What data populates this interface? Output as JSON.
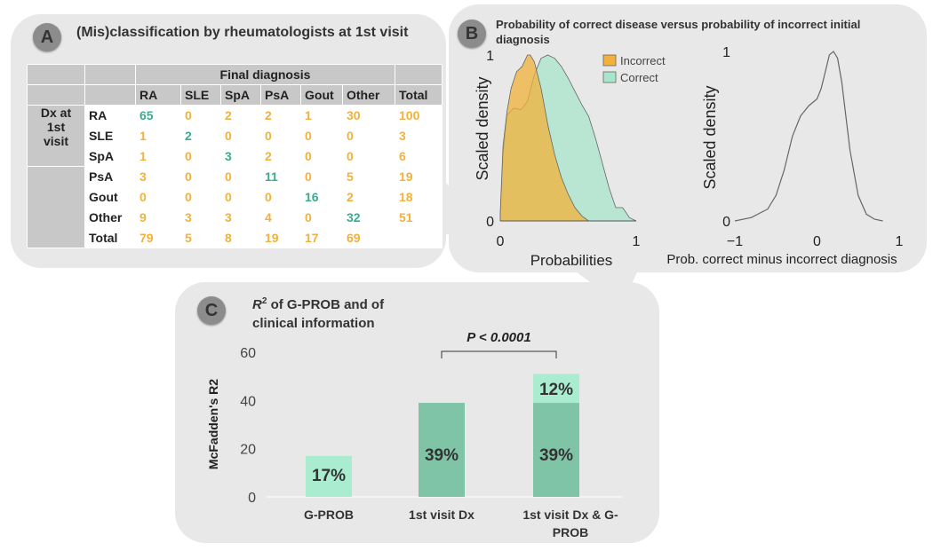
{
  "panelA": {
    "badge": "A",
    "title": "(Mis)classification by rheumatologists at 1st visit",
    "final_header": "Final diagnosis",
    "row_header": [
      "Dx at",
      "1st",
      "visit"
    ],
    "columns": [
      "RA",
      "SLE",
      "SpA",
      "PsA",
      "Gout",
      "Other",
      "Total"
    ],
    "rows": [
      {
        "label": "RA",
        "cells": [
          "65",
          "0",
          "2",
          "2",
          "1",
          "30",
          "100"
        ]
      },
      {
        "label": "SLE",
        "cells": [
          "1",
          "2",
          "0",
          "0",
          "0",
          "0",
          "3"
        ]
      },
      {
        "label": "SpA",
        "cells": [
          "1",
          "0",
          "3",
          "2",
          "0",
          "0",
          "6"
        ]
      },
      {
        "label": "PsA",
        "cells": [
          "3",
          "0",
          "0",
          "11",
          "0",
          "5",
          "19"
        ]
      },
      {
        "label": "Gout",
        "cells": [
          "0",
          "0",
          "0",
          "0",
          "16",
          "2",
          "18"
        ]
      },
      {
        "label": "Other",
        "cells": [
          "9",
          "3",
          "3",
          "4",
          "0",
          "32",
          "51"
        ]
      },
      {
        "label": "Total",
        "cells": [
          "79",
          "5",
          "8",
          "19",
          "17",
          "69",
          ""
        ]
      }
    ]
  },
  "panelB": {
    "badge": "B",
    "title_line1": "Probability of correct disease versus probability of incorrect initial",
    "title_line2": "diagnosis"
  },
  "panelC": {
    "badge": "C",
    "title_r2": "R",
    "title_sup": "2",
    "title_rest": " of G-PROB and of",
    "title_line2": "clinical information"
  },
  "colors": {
    "incorrect": "#f2b13a",
    "correct": "#a9e5cc",
    "bar_dark": "#7fc4a6",
    "bar_light": "#a9ecd0",
    "green_text": "#3aab8f"
  },
  "chart_data": [
    {
      "type": "area",
      "title": "Probability of correct disease versus probability of incorrect initial diagnosis",
      "xlabel": "Probabilities",
      "ylabel": "Scaled density",
      "xlim": [
        0,
        1
      ],
      "ylim": [
        0,
        1
      ],
      "xticks": [
        "0",
        "1"
      ],
      "yticks": [
        "0",
        "1"
      ],
      "legend": {
        "position": "top-right",
        "entries": [
          "Incorrect",
          "Correct"
        ]
      },
      "series": [
        {
          "name": "Incorrect",
          "x": [
            0.0,
            0.02,
            0.05,
            0.08,
            0.12,
            0.16,
            0.2,
            0.22,
            0.25,
            0.3,
            0.35,
            0.4,
            0.45,
            0.5,
            0.55,
            0.6,
            0.65
          ],
          "values": [
            0.05,
            0.45,
            0.66,
            0.8,
            0.9,
            0.93,
            1.0,
            1.0,
            0.96,
            0.8,
            0.58,
            0.4,
            0.26,
            0.16,
            0.08,
            0.03,
            0.0
          ]
        },
        {
          "name": "Correct",
          "x": [
            0.0,
            0.02,
            0.05,
            0.1,
            0.15,
            0.2,
            0.25,
            0.3,
            0.35,
            0.4,
            0.45,
            0.5,
            0.55,
            0.6,
            0.65,
            0.7,
            0.75,
            0.8,
            0.85,
            0.9,
            0.95,
            1.0
          ],
          "values": [
            0.03,
            0.4,
            0.64,
            0.68,
            0.67,
            0.72,
            0.88,
            0.98,
            1.0,
            0.98,
            0.93,
            0.86,
            0.78,
            0.7,
            0.63,
            0.5,
            0.35,
            0.2,
            0.08,
            0.08,
            0.02,
            0.0
          ]
        }
      ]
    },
    {
      "type": "line",
      "xlabel": "Prob. correct minus incorrect diagnosis",
      "ylabel": "Scaled density",
      "xlim": [
        -1,
        1
      ],
      "ylim": [
        0,
        1
      ],
      "xticks": [
        "−1",
        "0",
        "1"
      ],
      "yticks": [
        "0",
        "1"
      ],
      "series": [
        {
          "name": "Difference",
          "x": [
            -1.0,
            -0.8,
            -0.6,
            -0.5,
            -0.4,
            -0.3,
            -0.2,
            -0.1,
            0.0,
            0.05,
            0.1,
            0.15,
            0.2,
            0.25,
            0.3,
            0.35,
            0.4,
            0.5,
            0.6,
            0.7,
            0.8
          ],
          "values": [
            0.0,
            0.02,
            0.07,
            0.15,
            0.3,
            0.5,
            0.62,
            0.68,
            0.72,
            0.78,
            0.88,
            0.98,
            1.0,
            0.96,
            0.82,
            0.62,
            0.42,
            0.15,
            0.04,
            0.01,
            0.0
          ]
        }
      ]
    },
    {
      "type": "bar",
      "title": "R2 of G-PROB and of clinical information",
      "ylabel": "McFadden's R2",
      "ylim": [
        0,
        60
      ],
      "yticks": [
        "0",
        "20",
        "40",
        "60"
      ],
      "categories": [
        "G-PROB",
        "1st visit Dx",
        "1st visit Dx & G-PROB"
      ],
      "category_label_lines": [
        [
          "G-PROB"
        ],
        [
          "1st visit Dx"
        ],
        [
          "1st visit Dx &  G-",
          "PROB"
        ]
      ],
      "series": [
        {
          "name": "base",
          "values": [
            17,
            39,
            39
          ],
          "labels": [
            "17%",
            "39%",
            "39%"
          ]
        },
        {
          "name": "added",
          "values": [
            0,
            0,
            12
          ],
          "labels": [
            "",
            "",
            "12%"
          ]
        }
      ],
      "annotation": "P < 0.0001"
    }
  ]
}
